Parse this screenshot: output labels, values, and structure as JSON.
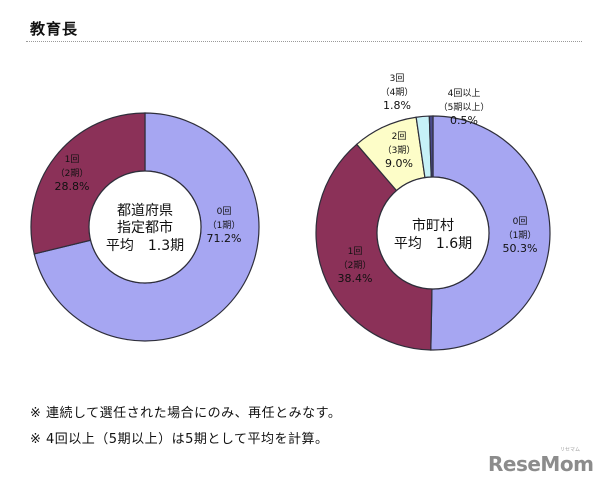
{
  "header": {
    "title": "教育長"
  },
  "chart_data": [
    {
      "type": "pie",
      "center_text": [
        "都道府県",
        "指定都市",
        "平均　1.3期"
      ],
      "categories": [
        "0回（1期）",
        "1回（2期）"
      ],
      "slices": [
        {
          "label_lines": [
            "0回",
            "（1期）",
            "71.2%"
          ],
          "value": 71.2,
          "color": "#a6a6f2"
        },
        {
          "label_lines": [
            "1回",
            "（2期）",
            "28.8%"
          ],
          "value": 28.8,
          "color": "#8b3158"
        }
      ]
    },
    {
      "type": "pie",
      "center_text": [
        "市町村",
        "平均　1.6期"
      ],
      "slices": [
        {
          "label_lines": [
            "0回",
            "（1期）",
            "50.3%"
          ],
          "value": 50.3,
          "color": "#a6a6f2"
        },
        {
          "label_lines": [
            "1回",
            "（2期）",
            "38.4%"
          ],
          "value": 38.4,
          "color": "#8b3158"
        },
        {
          "label_lines": [
            "2回",
            "（3期）",
            "9.0%"
          ],
          "value": 9.0,
          "color": "#fdfdc8"
        },
        {
          "label_lines": [
            "3回",
            "（4期）",
            "1.8%"
          ],
          "value": 1.8,
          "color": "#c6f1f7"
        },
        {
          "label_lines": [
            "4回以上",
            "（5期以上）",
            "0.5%"
          ],
          "value": 0.5,
          "color": "#4a4a8c"
        }
      ]
    }
  ],
  "notes": [
    "※ 連続して選任された場合にのみ、再任とみなす。",
    "※ 4回以上（5期以上）は5期として平均を計算。"
  ],
  "logo": {
    "text": "ReseMom",
    "subtext": "リセマム"
  }
}
